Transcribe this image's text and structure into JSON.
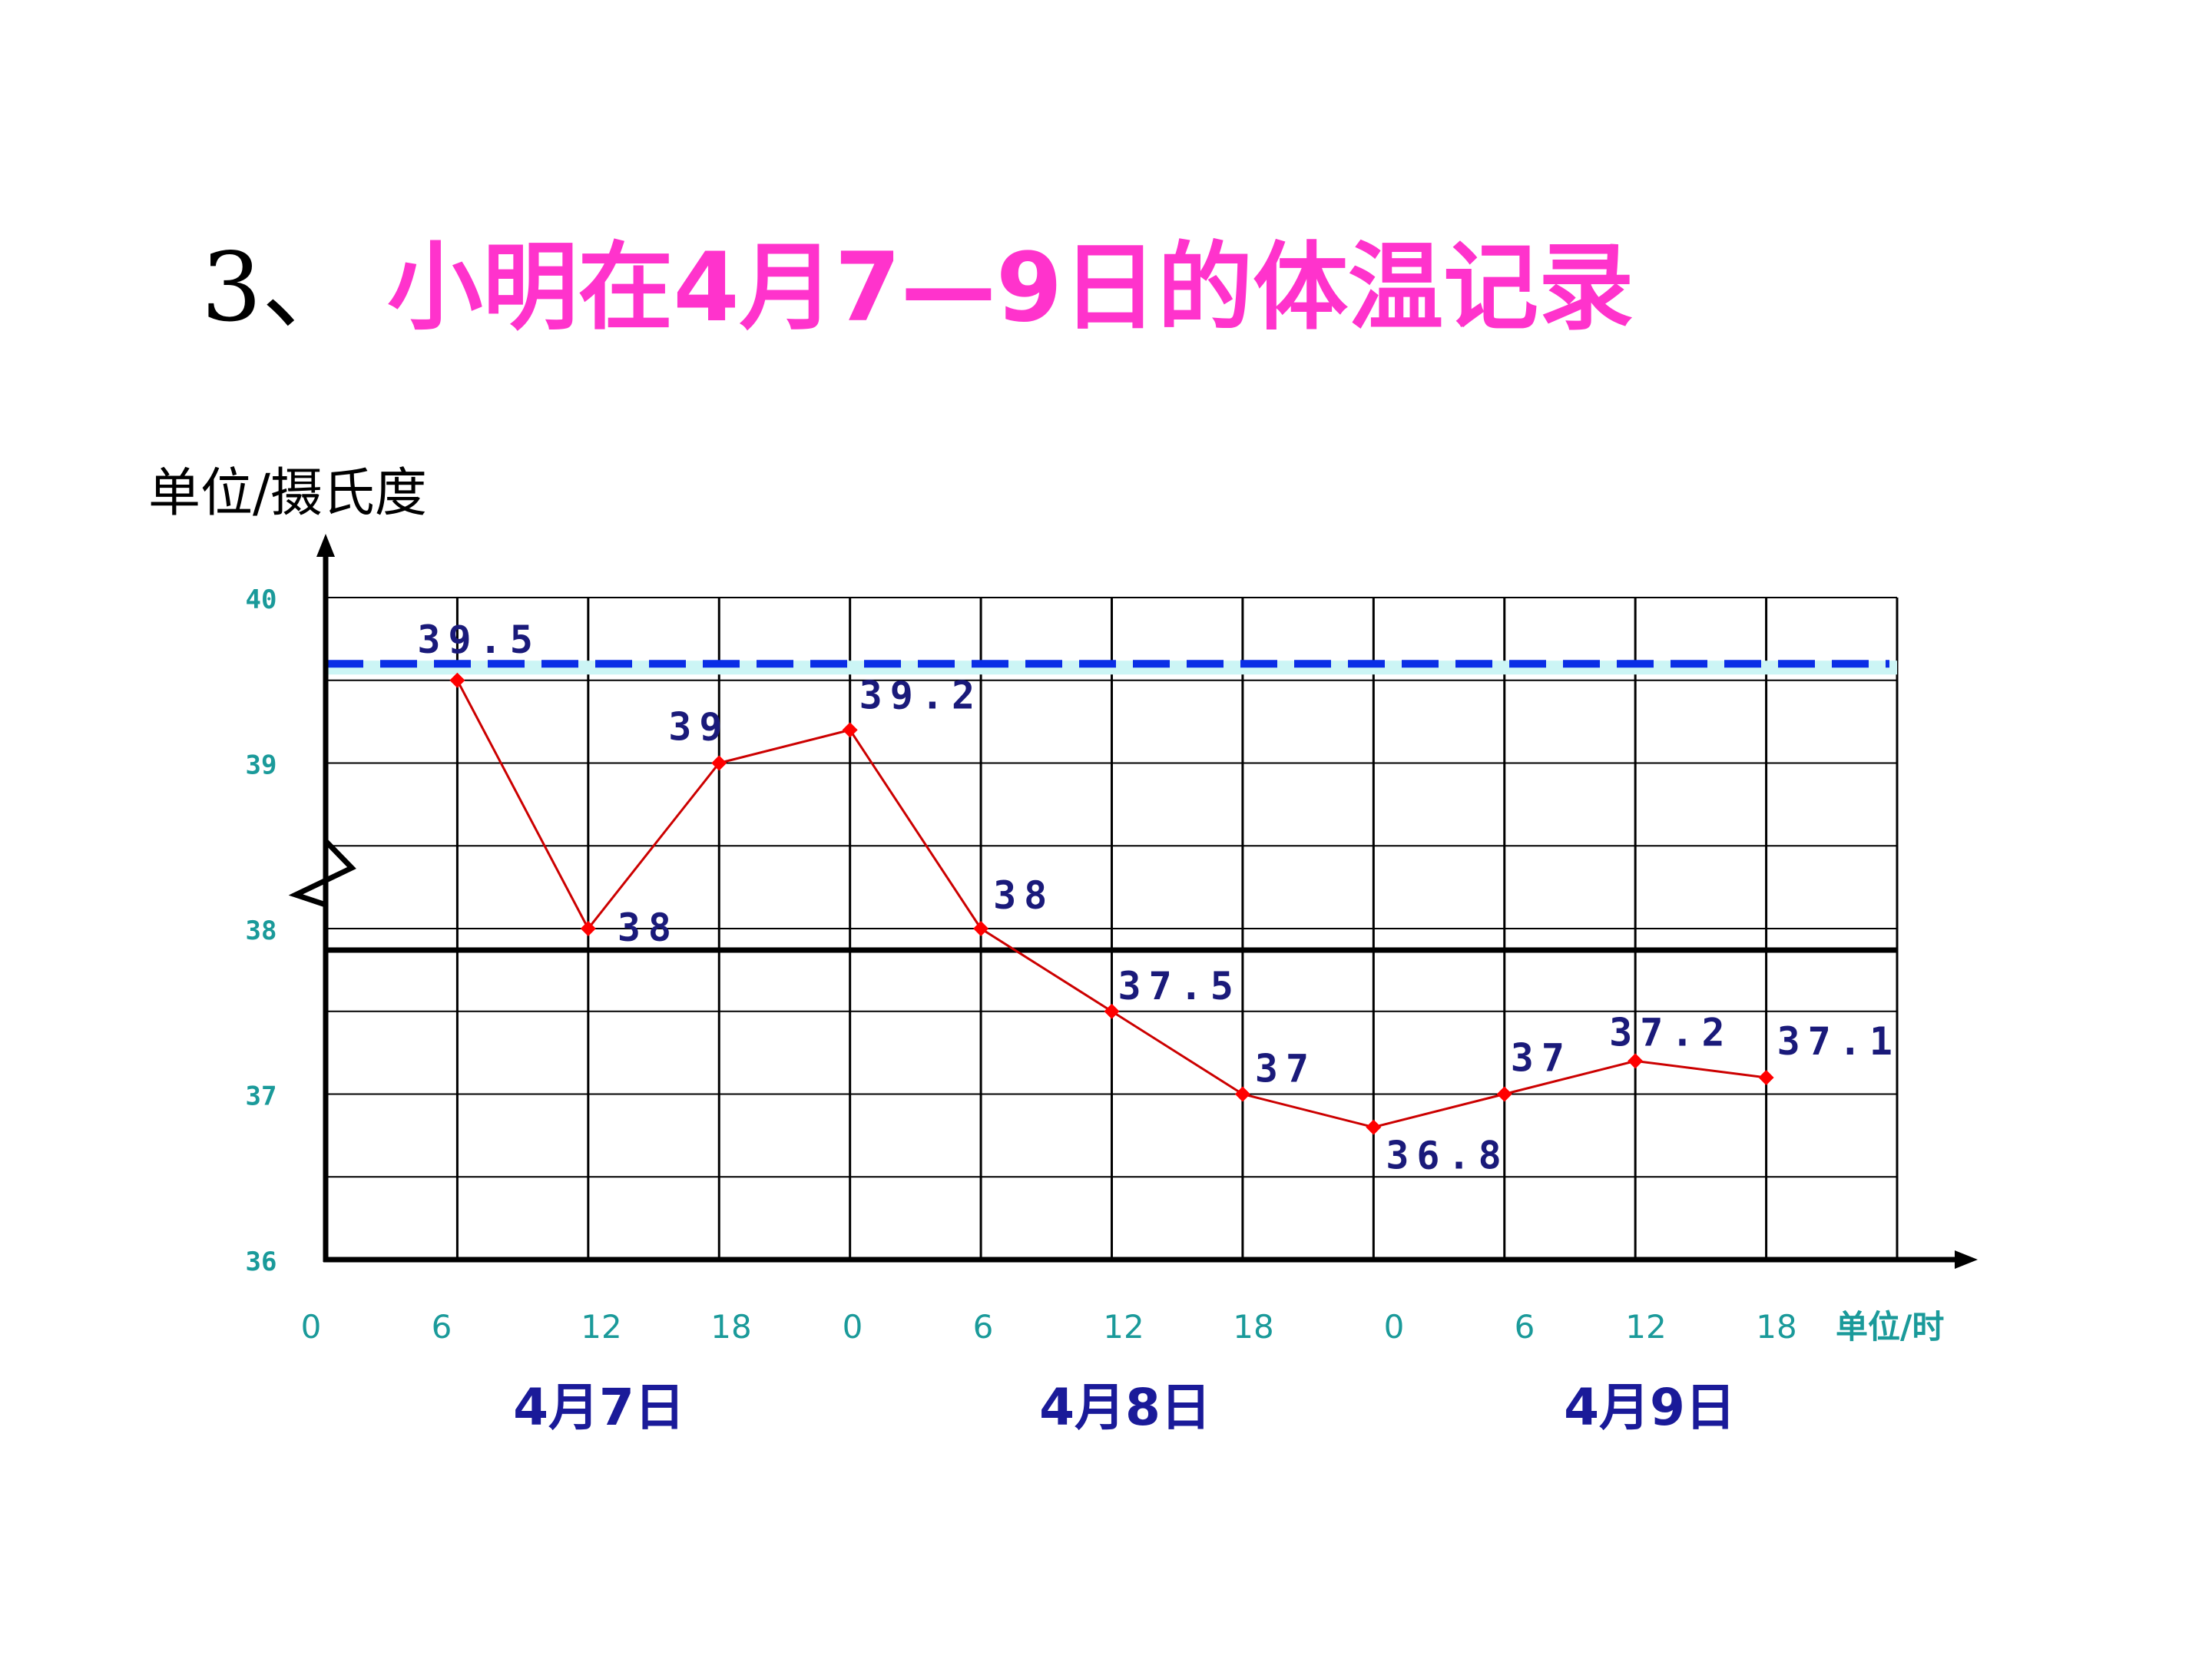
{
  "title": {
    "prefix": "3、",
    "text": "小明在4月7—9日的体温记录"
  },
  "chart_data": {
    "type": "line",
    "ylabel": "单位/摄氏度",
    "xlabel": "单位/时",
    "x_ticks": [
      "0",
      "6",
      "12",
      "18",
      "0",
      "6",
      "12",
      "18",
      "0",
      "6",
      "12",
      "18"
    ],
    "y_ticks": [
      "40",
      "39",
      "38",
      "37",
      "36"
    ],
    "ylim": [
      36,
      40
    ],
    "y_axis_break": true,
    "day_labels": [
      "4月7日",
      "4月8日",
      "4月9日"
    ],
    "series": [
      {
        "points": [
          {
            "hour": 6,
            "value": 39.5,
            "label": "39.5"
          },
          {
            "hour": 12,
            "value": 38,
            "label": "38"
          },
          {
            "hour": 18,
            "value": 39,
            "label": "39"
          },
          {
            "hour": 24,
            "value": 39.2,
            "label": "39.2"
          },
          {
            "hour": 30,
            "value": 38,
            "label": "38"
          },
          {
            "hour": 36,
            "value": 37.5,
            "label": "37.5"
          },
          {
            "hour": 42,
            "value": 37,
            "label": "37"
          },
          {
            "hour": 48,
            "value": 36.8,
            "label": "36.8"
          },
          {
            "hour": 54,
            "value": 37,
            "label": "37"
          },
          {
            "hour": 60,
            "value": 37.2,
            "label": "37.2"
          },
          {
            "hour": 66,
            "value": 37.1,
            "label": "37.1"
          }
        ]
      }
    ],
    "reference_lines": [
      {
        "value": 39.6,
        "style": "dashed"
      },
      {
        "value": 37.87,
        "style": "solid"
      }
    ],
    "colors": {
      "line": "#cc0000",
      "point": "#ff0000",
      "data_label": "#1a1a7a",
      "dashed_line": "#0a2ee6",
      "dashed_highlight": "#ccf5f5",
      "tick_label": "#1a9a9a",
      "day_label": "#1a1a99",
      "title": "#ff33cc"
    }
  }
}
